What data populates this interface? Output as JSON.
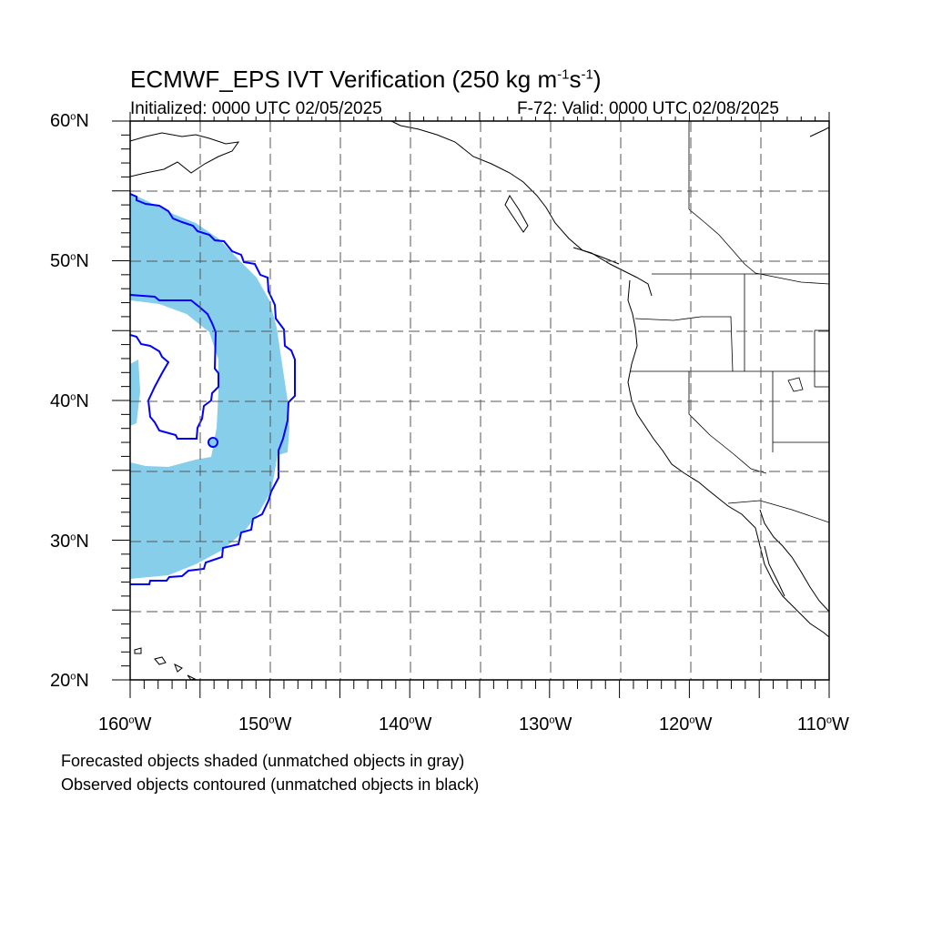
{
  "header": {
    "title_main": "ECMWF_EPS IVT Verification (250 kg m",
    "title_exp1": "-1",
    "title_mid": "s",
    "title_exp2": "-1",
    "title_end": ")",
    "initialized": "Initialized: 0000 UTC 02/05/2025",
    "valid": "F-72: Valid: 0000 UTC 02/08/2025"
  },
  "map": {
    "projection": "cylindrical-equidistant",
    "lon_range": [
      -160,
      -110
    ],
    "lat_range": [
      20,
      60
    ],
    "grid_interval_deg": 5,
    "grid_style": "dashed",
    "lat_labels": [
      {
        "value": 60,
        "num": "60",
        "deg": "o",
        "hem": "N"
      },
      {
        "value": 50,
        "num": "50",
        "deg": "o",
        "hem": "N"
      },
      {
        "value": 40,
        "num": "40",
        "deg": "o",
        "hem": "N"
      },
      {
        "value": 30,
        "num": "30",
        "deg": "o",
        "hem": "N"
      },
      {
        "value": 20,
        "num": "20",
        "deg": "o",
        "hem": "N"
      }
    ],
    "lon_labels": [
      {
        "value": -160,
        "num": "160",
        "deg": "o",
        "hem": "W"
      },
      {
        "value": -150,
        "num": "150",
        "deg": "o",
        "hem": "W"
      },
      {
        "value": -140,
        "num": "140",
        "deg": "o",
        "hem": "W"
      },
      {
        "value": -130,
        "num": "130",
        "deg": "o",
        "hem": "W"
      },
      {
        "value": -120,
        "num": "120",
        "deg": "o",
        "hem": "W"
      },
      {
        "value": -110,
        "num": "110",
        "deg": "o",
        "hem": "W"
      }
    ],
    "colors": {
      "forecast_fill": "#87ceeb",
      "observed_contour": "#0000ff",
      "coastline": "#000000",
      "grid": "#555555"
    }
  },
  "legend": {
    "line1": "Forecasted objects shaded (unmatched objects in gray)",
    "line2": "Observed objects contoured (unmatched objects in black)"
  }
}
